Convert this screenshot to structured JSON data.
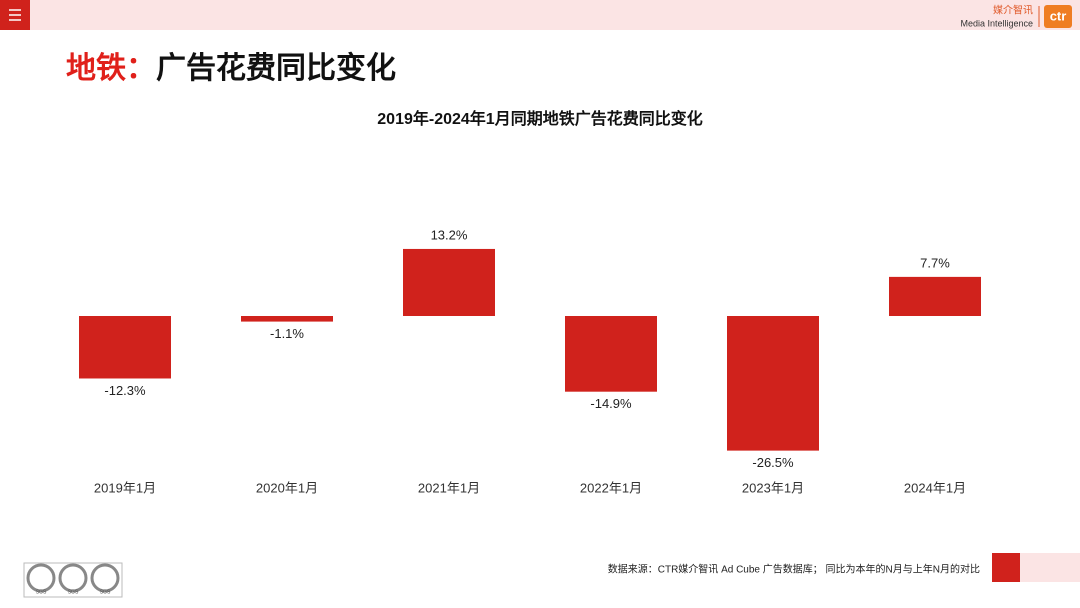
{
  "header": {
    "brand_cn": "媒介智讯",
    "brand_en": "Media Intelligence",
    "logo": "ctr"
  },
  "slide": {
    "title_accent": "地铁：",
    "title_rest": "广告花费同比变化"
  },
  "chart_data": {
    "type": "bar",
    "title": "2019年-2024年1月同期地铁广告花费同比变化",
    "categories": [
      "2019年1月",
      "2020年1月",
      "2021年1月",
      "2022年1月",
      "2023年1月",
      "2024年1月"
    ],
    "values": [
      -12.3,
      -1.1,
      13.2,
      -14.9,
      -26.5,
      7.7
    ],
    "value_labels": [
      "-12.3%",
      "-1.1%",
      "13.2%",
      "-14.9%",
      "-26.5%",
      "7.7%"
    ],
    "color": "#d0221c",
    "ylim": [
      -30,
      20
    ]
  },
  "footer": {
    "source": "数据来源：CTR媒介智讯 Ad Cube 广告数据库； 同比为本年的N月与上年N月的对比",
    "badges": [
      "SGS",
      "SGS",
      "SGS"
    ]
  }
}
